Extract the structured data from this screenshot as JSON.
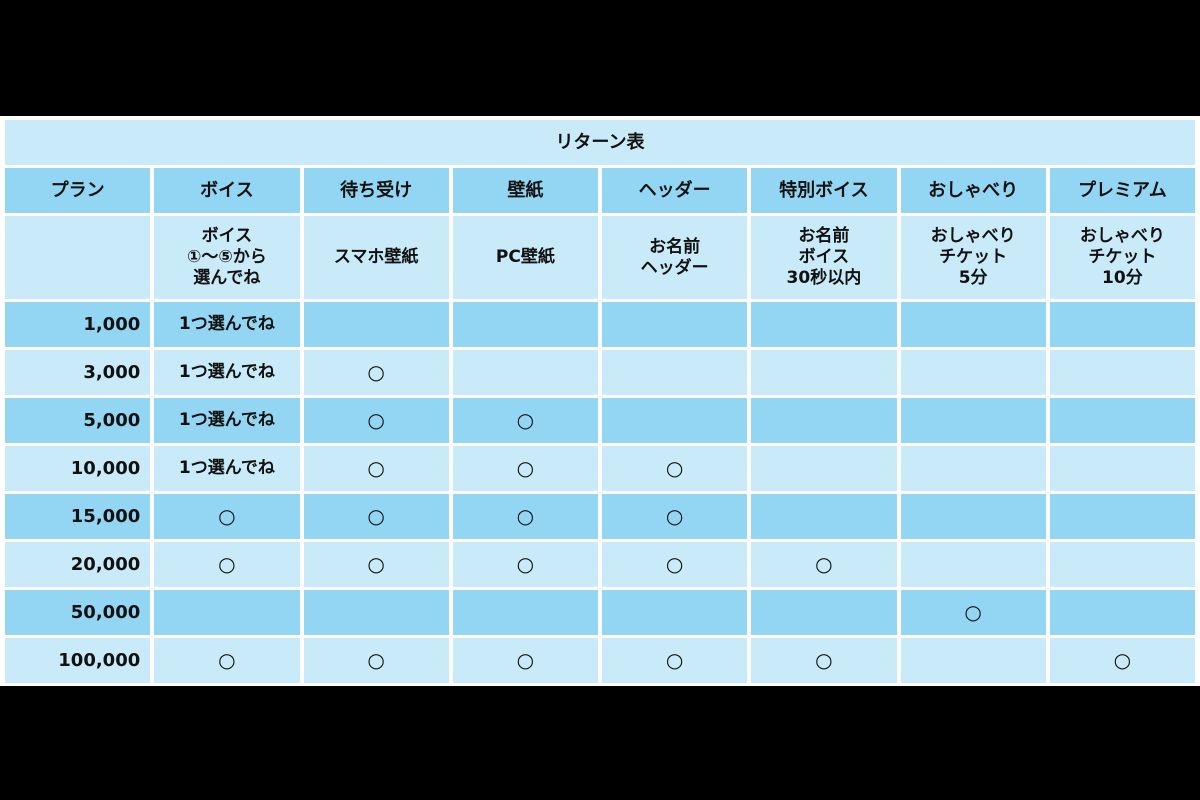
{
  "title": "リターン表",
  "headers": [
    "プラン",
    "ボイス",
    "待ち受け",
    "壁紙",
    "ヘッダー",
    "特別ボイス",
    "おしゃべり",
    "プレミアム"
  ],
  "descriptions": [
    "",
    "ボイス\n①〜⑤から\n選んでね",
    "スマホ壁紙",
    "PC壁紙",
    "お名前\nヘッダー",
    "お名前\nボイス\n30秒以内",
    "おしゃべり\nチケット\n5分",
    "おしゃべり\nチケット\n10分"
  ],
  "rows": [
    [
      "1,000",
      "1つ選んでね",
      "",
      "",
      "",
      "",
      "",
      ""
    ],
    [
      "3,000",
      "1つ選んでね",
      "○",
      "",
      "",
      "",
      "",
      ""
    ],
    [
      "5,000",
      "1つ選んでね",
      "○",
      "○",
      "",
      "",
      "",
      ""
    ],
    [
      "10,000",
      "1つ選んでね",
      "○",
      "○",
      "○",
      "",
      "",
      ""
    ],
    [
      "15,000",
      "○",
      "○",
      "○",
      "○",
      "",
      "",
      ""
    ],
    [
      "20,000",
      "○",
      "○",
      "○",
      "○",
      "○",
      "",
      ""
    ],
    [
      "50,000",
      "",
      "",
      "",
      "",
      "",
      "○",
      ""
    ],
    [
      "100,000",
      "○",
      "○",
      "○",
      "○",
      "○",
      "",
      "○"
    ]
  ],
  "colors": {
    "dark_cell": "#93d6f4",
    "light_cell": "#c9ebf9",
    "frame": "#000000"
  }
}
